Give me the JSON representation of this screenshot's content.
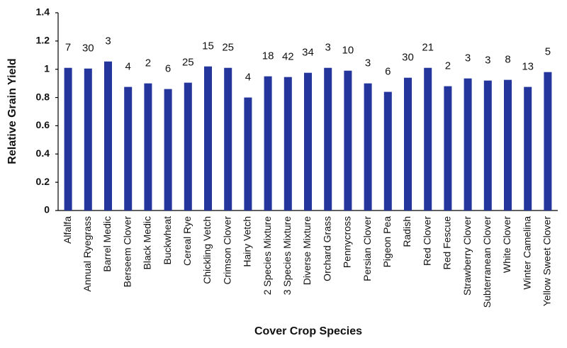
{
  "chart_data": {
    "type": "bar",
    "x_label": "Cover Crop Species",
    "y_label": "Relative Grain Yield",
    "categories": [
      "Alfalfa",
      "Annual Ryegrass",
      "Barrel Medic",
      "Berseem Clover",
      "Black Medic",
      "Buckwheat",
      "Cereal Rye",
      "Chickling Vetch",
      "Crimson Clover",
      "Hairy Vetch",
      "2 Species Mixture",
      "3 Species Mixture",
      "Diverse Mixture",
      "Orchard Grass",
      "Pennycross",
      "Persian Clover",
      "Pigeon Pea",
      "Radish",
      "Red Clover",
      "Red Fescue",
      "Strawberry Clover",
      "Subterranean Clover",
      "White Clover",
      "Winter Camelina",
      "Yellow Sweet Clover"
    ],
    "values": [
      1.01,
      1.005,
      1.055,
      0.875,
      0.9,
      0.86,
      0.905,
      1.02,
      1.01,
      0.8,
      0.95,
      0.945,
      0.975,
      1.01,
      0.99,
      0.9,
      0.84,
      0.94,
      1.01,
      0.88,
      0.935,
      0.92,
      0.925,
      0.875,
      0.98
    ],
    "sample_sizes": [
      7,
      30,
      3,
      4,
      2,
      6,
      25,
      15,
      25,
      4,
      18,
      42,
      34,
      3,
      10,
      3,
      6,
      30,
      21,
      2,
      3,
      3,
      8,
      13,
      5
    ],
    "color": "#24359c",
    "ylim": [
      0,
      1.4
    ],
    "yticks": [
      0,
      0.2,
      0.4,
      0.6,
      0.8,
      1,
      1.2,
      1.4
    ],
    "grid": false
  }
}
